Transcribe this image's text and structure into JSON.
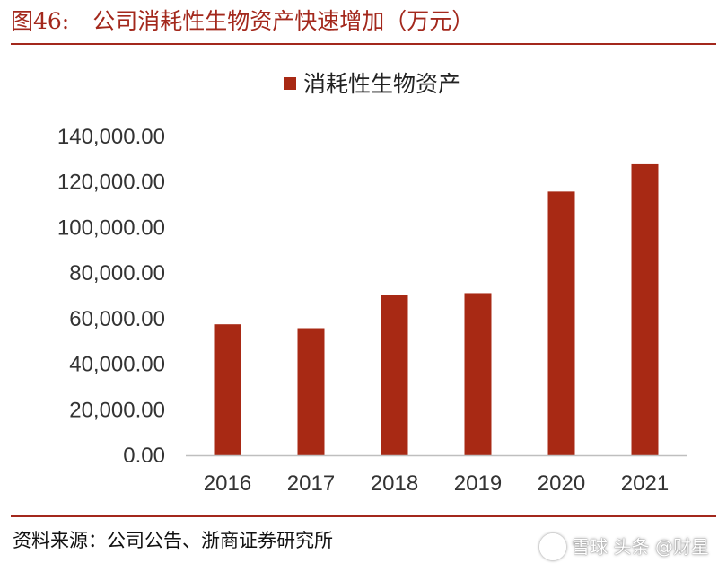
{
  "figure": {
    "number_label": "图46:",
    "title": "公司消耗性生物资产快速增加（万元）",
    "source": "资料来源：公司公告、浙商证券研究所",
    "watermark": "雪球 头条 @财星"
  },
  "colors": {
    "accent": "#a3281c",
    "bar": "#a82914",
    "text": "#222222"
  },
  "chart_data": {
    "type": "bar",
    "categories": [
      "2016",
      "2017",
      "2018",
      "2019",
      "2020",
      "2021"
    ],
    "series": [
      {
        "name": "消耗性生物资产",
        "values": [
          57500,
          55800,
          70300,
          71200,
          115800,
          127800
        ]
      }
    ],
    "ylim": [
      0,
      140000
    ],
    "yticks": [
      0,
      20000,
      40000,
      60000,
      80000,
      100000,
      120000,
      140000
    ],
    "ytick_labels": [
      "0.00",
      "20,000.00",
      "40,000.00",
      "60,000.00",
      "80,000.00",
      "100,000.00",
      "120,000.00",
      "140,000.00"
    ],
    "legend_position": "top-center",
    "grid": false,
    "xlabel": "",
    "ylabel": ""
  }
}
